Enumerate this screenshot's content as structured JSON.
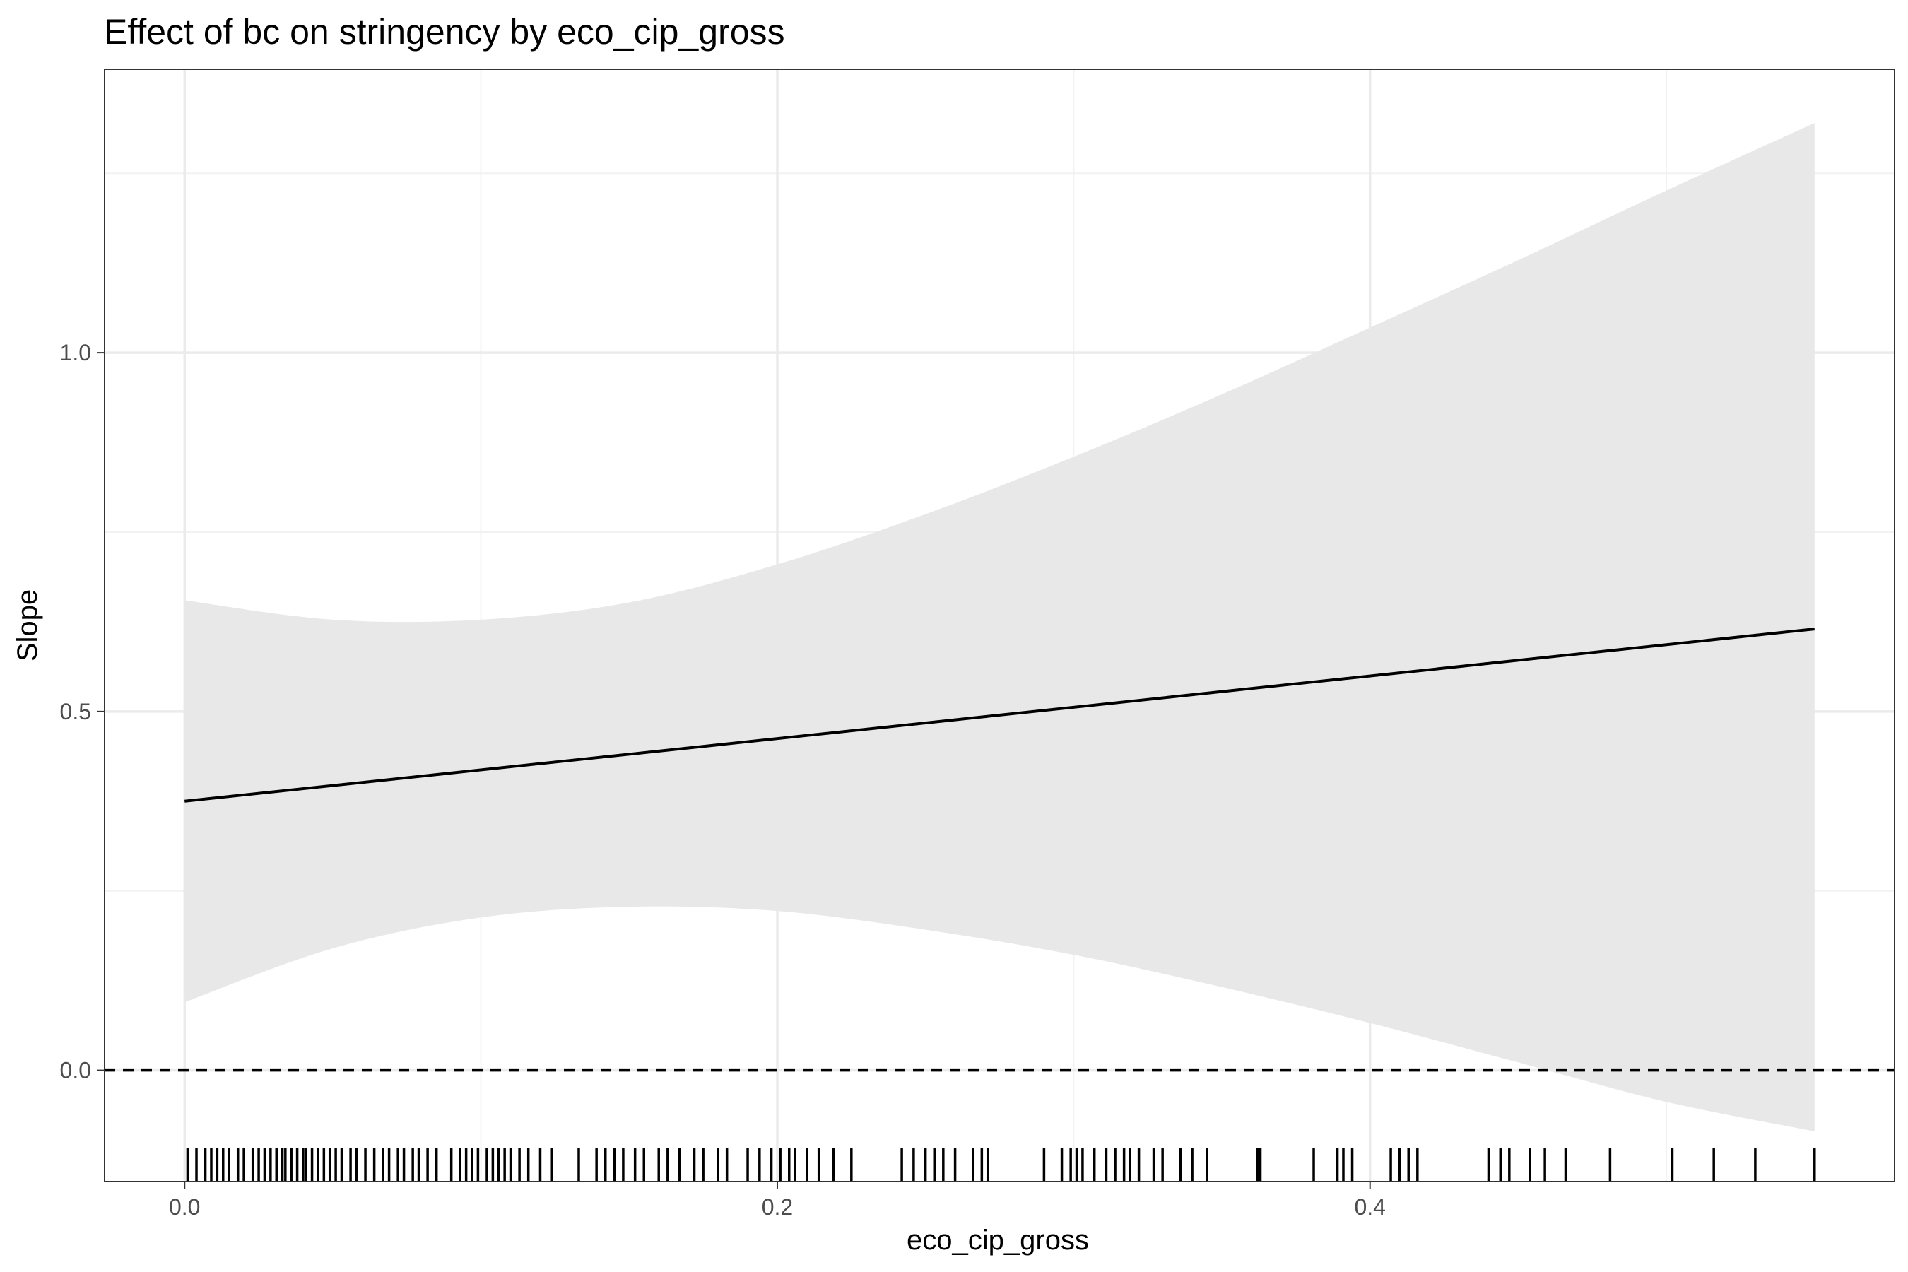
{
  "chart_data": {
    "type": "line",
    "title": "Effect of bc on stringency by eco_cip_gross",
    "xlabel": "eco_cip_gross",
    "ylabel": "Slope",
    "xlim": [
      -0.027,
      0.577
    ],
    "ylim": [
      -0.155,
      1.395
    ],
    "x_ticks": [
      0.0,
      0.2,
      0.4
    ],
    "x_tick_labels": [
      "0.0",
      "0.2",
      "0.4"
    ],
    "y_ticks": [
      0.0,
      0.5,
      1.0
    ],
    "y_tick_labels": [
      "0.0",
      "0.5",
      "1.0"
    ],
    "grid": true,
    "reference_line": {
      "y": 0,
      "style": "dashed"
    },
    "series": [
      {
        "role": "slope-estimate",
        "x": [
          0.0,
          0.55
        ],
        "y": [
          0.375,
          0.615
        ]
      }
    ],
    "confidence_band": {
      "x": [
        0.0,
        0.05,
        0.1,
        0.15,
        0.2,
        0.25,
        0.3,
        0.35,
        0.4,
        0.45,
        0.5,
        0.55
      ],
      "lower": [
        0.095,
        0.17,
        0.213,
        0.228,
        0.222,
        0.196,
        0.161,
        0.116,
        0.066,
        0.011,
        -0.044,
        -0.085
      ],
      "upper": [
        0.655,
        0.628,
        0.628,
        0.652,
        0.705,
        0.775,
        0.855,
        0.942,
        1.035,
        1.129,
        1.226,
        1.32
      ]
    },
    "rug_x": [
      0.001,
      0.004,
      0.007,
      0.009,
      0.011,
      0.013,
      0.015,
      0.018,
      0.02,
      0.023,
      0.025,
      0.027,
      0.029,
      0.031,
      0.033,
      0.034,
      0.036,
      0.038,
      0.04,
      0.041,
      0.043,
      0.045,
      0.047,
      0.049,
      0.051,
      0.053,
      0.056,
      0.058,
      0.061,
      0.064,
      0.067,
      0.069,
      0.072,
      0.074,
      0.077,
      0.079,
      0.082,
      0.085,
      0.09,
      0.093,
      0.095,
      0.097,
      0.099,
      0.102,
      0.104,
      0.106,
      0.108,
      0.11,
      0.113,
      0.116,
      0.12,
      0.124,
      0.133,
      0.139,
      0.142,
      0.145,
      0.148,
      0.152,
      0.155,
      0.16,
      0.163,
      0.167,
      0.172,
      0.175,
      0.18,
      0.183,
      0.19,
      0.194,
      0.198,
      0.201,
      0.204,
      0.206,
      0.21,
      0.214,
      0.219,
      0.225,
      0.242,
      0.246,
      0.25,
      0.253,
      0.256,
      0.26,
      0.266,
      0.269,
      0.271,
      0.29,
      0.296,
      0.299,
      0.301,
      0.303,
      0.307,
      0.311,
      0.314,
      0.317,
      0.319,
      0.322,
      0.327,
      0.33,
      0.336,
      0.34,
      0.345,
      0.362,
      0.363,
      0.381,
      0.389,
      0.391,
      0.394,
      0.407,
      0.41,
      0.413,
      0.416,
      0.44,
      0.444,
      0.447,
      0.454,
      0.459,
      0.466,
      0.481,
      0.502,
      0.516,
      0.53,
      0.55
    ]
  }
}
